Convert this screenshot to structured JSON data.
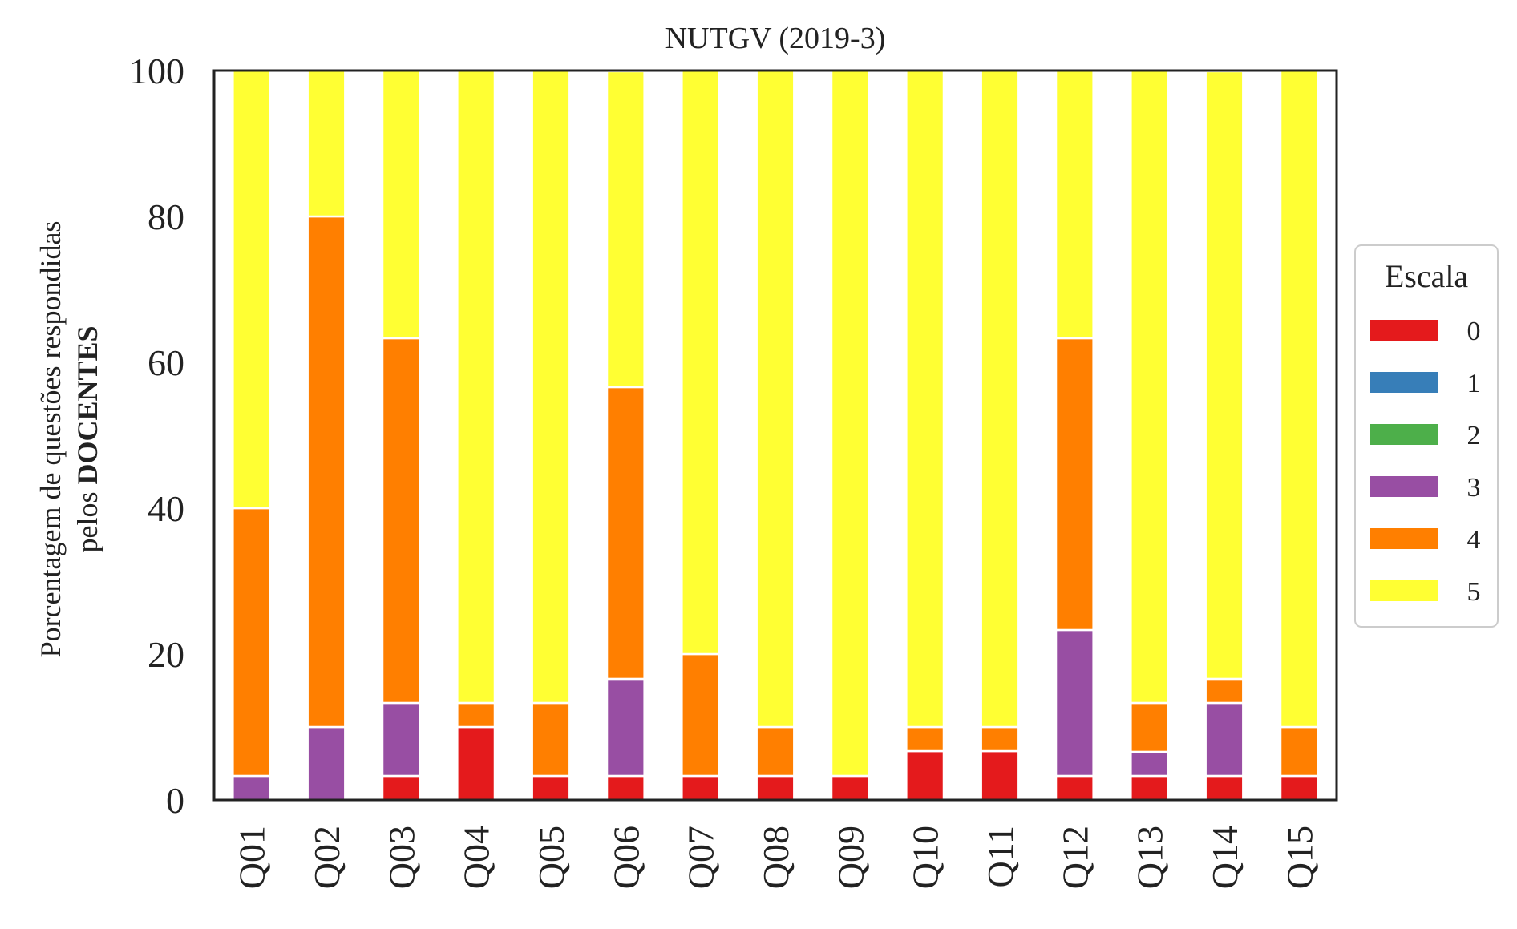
{
  "chart_data": {
    "type": "bar",
    "stacked": true,
    "title": "NUTGV (2019-3)",
    "ylabel_line1": "Porcentagem de questões respondidas",
    "ylabel_line2_prefix": "pelos ",
    "ylabel_line2_bold": "DOCENTES",
    "ylim": [
      0,
      100
    ],
    "yticks": [
      "0",
      "20",
      "40",
      "60",
      "80",
      "100"
    ],
    "grid": false,
    "legend": {
      "title": "Escala",
      "placement": "right"
    },
    "categories": [
      "Q01",
      "Q02",
      "Q03",
      "Q04",
      "Q05",
      "Q06",
      "Q07",
      "Q08",
      "Q09",
      "Q10",
      "Q11",
      "Q12",
      "Q13",
      "Q14",
      "Q15"
    ],
    "series": [
      {
        "name": "0",
        "color": "#e41a1c",
        "values": [
          0,
          0,
          3.3,
          10,
          3.3,
          3.3,
          3.3,
          3.3,
          3.3,
          6.7,
          6.7,
          3.3,
          3.3,
          3.3,
          3.3
        ]
      },
      {
        "name": "1",
        "color": "#377eb8",
        "values": [
          0,
          0,
          0,
          0,
          0,
          0,
          0,
          0,
          0,
          0,
          0,
          0,
          0,
          0,
          0
        ]
      },
      {
        "name": "2",
        "color": "#4daf4a",
        "values": [
          0,
          0,
          0,
          0,
          0,
          0,
          0,
          0,
          0,
          0,
          0,
          0,
          0,
          0,
          0
        ]
      },
      {
        "name": "3",
        "color": "#984ea3",
        "values": [
          3.3,
          10,
          10,
          0,
          0,
          13.3,
          0,
          0,
          0,
          0,
          0,
          20,
          3.3,
          10,
          0
        ]
      },
      {
        "name": "4",
        "color": "#ff7f00",
        "values": [
          36.7,
          70,
          50,
          3.3,
          10,
          40,
          16.7,
          6.7,
          0,
          3.3,
          3.3,
          40,
          6.7,
          3.3,
          6.7
        ]
      },
      {
        "name": "5",
        "color": "#ffff33",
        "values": [
          60,
          20,
          36.7,
          86.7,
          86.7,
          43.3,
          80,
          90,
          96.7,
          90,
          90,
          36.7,
          86.7,
          83.3,
          90
        ]
      }
    ]
  }
}
